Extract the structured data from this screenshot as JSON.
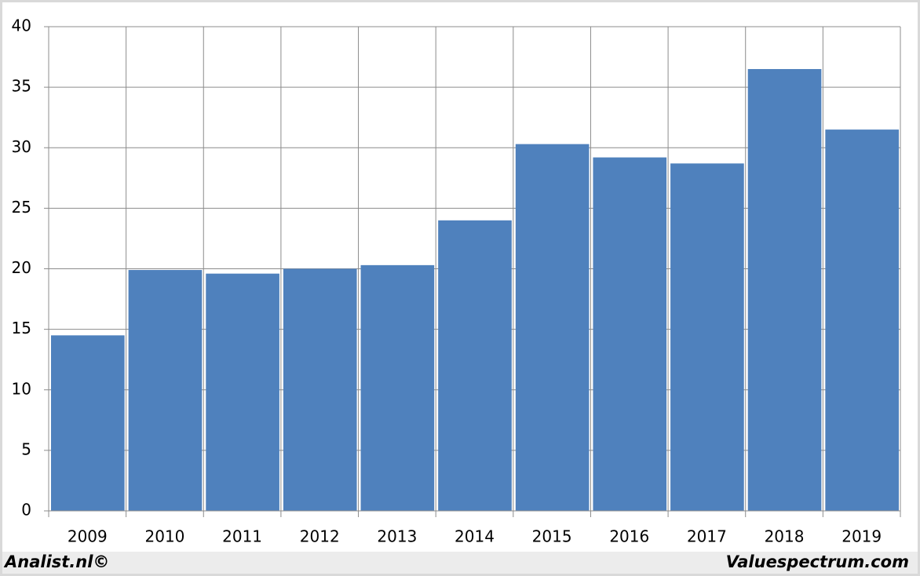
{
  "chart_data": {
    "type": "bar",
    "categories": [
      "2009",
      "2010",
      "2011",
      "2012",
      "2013",
      "2014",
      "2015",
      "2016",
      "2017",
      "2018",
      "2019"
    ],
    "values": [
      14.5,
      19.9,
      19.6,
      20.0,
      20.3,
      24.0,
      30.3,
      29.2,
      28.7,
      36.5,
      31.5
    ],
    "color": "#4f81bd",
    "ylim": [
      0,
      40
    ],
    "yticks": [
      0,
      5,
      10,
      15,
      20,
      25,
      30,
      35,
      40
    ],
    "grid": true,
    "source": "Analist.nl©",
    "credit": "Valuespectrum.com"
  }
}
